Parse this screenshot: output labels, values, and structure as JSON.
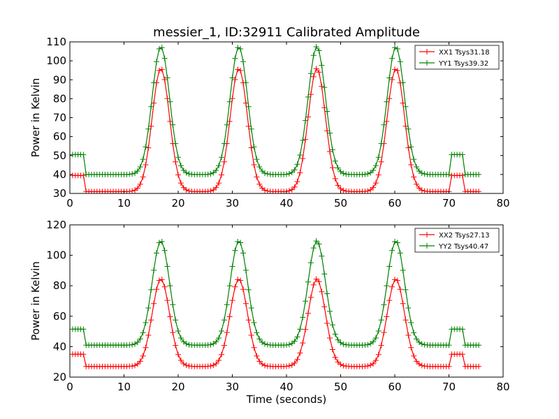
{
  "title": "messier_1, ID:32911 Calibrated Amplitude",
  "colors": {
    "xx": "#ff0000",
    "yy": "#008000"
  },
  "chart_data": [
    {
      "type": "line",
      "title": "messier_1, ID:32911 Calibrated Amplitude",
      "xlabel": "",
      "ylabel": "Power in Kelvin",
      "xlim": [
        0,
        80
      ],
      "ylim": [
        30,
        110
      ],
      "xticks": [
        0,
        10,
        20,
        30,
        40,
        50,
        60,
        70,
        80
      ],
      "yticks": [
        30,
        40,
        50,
        60,
        70,
        80,
        90,
        100,
        110
      ],
      "legend_position": "top-right",
      "grid": false,
      "marker": "+",
      "series": [
        {
          "name": "XX1 Tsys31.18",
          "color": "#ff0000",
          "baseline": 31,
          "peak": 96,
          "cal_level": 39.5
        },
        {
          "name": "YY1 Tsys39.32",
          "color": "#008000",
          "baseline": 40,
          "peak": 107.5,
          "cal_level": 50.5
        }
      ]
    },
    {
      "type": "line",
      "xlabel": "Time (seconds)",
      "ylabel": "Power in Kelvin",
      "xlim": [
        0,
        80
      ],
      "ylim": [
        20,
        120
      ],
      "xticks": [
        0,
        10,
        20,
        30,
        40,
        50,
        60,
        70,
        80
      ],
      "yticks": [
        20,
        40,
        60,
        80,
        100,
        120
      ],
      "legend_position": "top-right",
      "grid": false,
      "marker": "+",
      "series": [
        {
          "name": "XX2 Tsys27.13",
          "color": "#ff0000",
          "baseline": 27,
          "peak": 84.5,
          "cal_level": 35
        },
        {
          "name": "YY2 Tsys40.47",
          "color": "#008000",
          "baseline": 41,
          "peak": 109.5,
          "cal_level": 51.5
        }
      ]
    }
  ],
  "shared_x": {
    "t_start": 0.5,
    "t_end": 75.5,
    "dt": 0.5,
    "cal_windows": [
      [
        0.5,
        2.5
      ],
      [
        70.5,
        72.5
      ]
    ],
    "peak_centers": [
      16.8,
      31.2,
      45.6,
      60.2
    ],
    "peak_sigma": 1.6
  }
}
